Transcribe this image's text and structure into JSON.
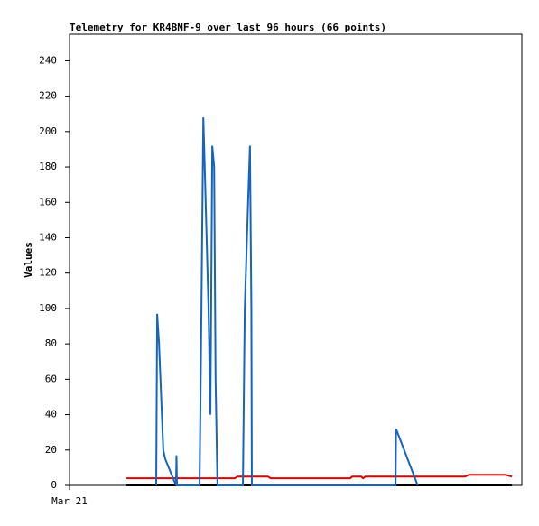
{
  "chart_data": {
    "type": "line",
    "title": "Telemetry for KR4BNF-9 over last 96 hours (66 points)",
    "y_label": "Values",
    "xlim": [
      0,
      96
    ],
    "xticks": [
      {
        "value": 0,
        "label": "Mar 21"
      }
    ],
    "ylim": [
      0,
      255
    ],
    "yticks": [
      0,
      20,
      40,
      60,
      80,
      100,
      120,
      140,
      160,
      180,
      200,
      220,
      240
    ],
    "series": [
      {
        "color": "#000000",
        "x": [
          12.1,
          93.9
        ],
        "values": [
          0,
          0
        ]
      },
      {
        "color": "#e00000",
        "x": [
          12.1,
          35.1,
          35.6,
          42.1,
          42.7,
          59.6,
          60.0,
          61.9,
          62.3,
          62.8,
          83.9,
          84.8,
          92.5,
          93.9
        ],
        "values": [
          4,
          4,
          5,
          5,
          4,
          4,
          5,
          5,
          4,
          5,
          5,
          6,
          6,
          5
        ]
      },
      {
        "color": "#1565c0",
        "x": [
          18.4,
          18.6,
          19.0,
          19.3,
          19.9,
          20.3,
          22.6,
          22.7,
          22.8,
          27.6,
          28.0,
          28.4,
          28.7,
          29.1,
          29.5,
          29.9,
          30.3,
          30.7,
          31.0,
          31.4,
          36.8,
          37.2,
          37.9,
          38.3,
          38.6,
          38.7,
          69.2,
          69.3,
          73.9
        ],
        "values": [
          0,
          97,
          80,
          60,
          20,
          15,
          0,
          17,
          0,
          0,
          100,
          208,
          180,
          140,
          100,
          40,
          192,
          180,
          60,
          0,
          0,
          100,
          160,
          192,
          100,
          0,
          0,
          32,
          0
        ]
      }
    ]
  }
}
